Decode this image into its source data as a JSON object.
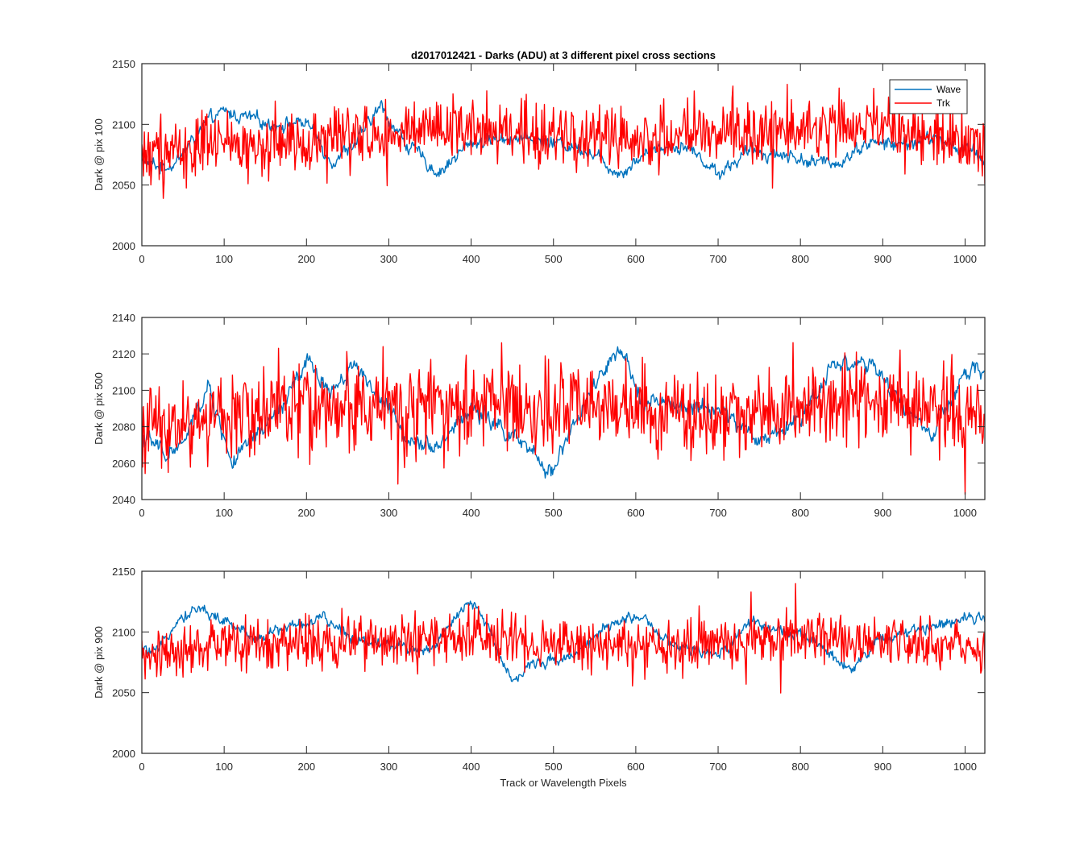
{
  "figure": {
    "title": "d2017012421 - Darks (ADU) at 3 different pixel cross sections",
    "xlabel": "Track or Wavelength Pixels"
  },
  "chart_data": [
    {
      "type": "line",
      "title": "d2017012421 - Darks (ADU) at 3 different pixel cross sections",
      "xlabel": "",
      "ylabel": "Dark @ pix 100",
      "xlim": [
        0,
        1024
      ],
      "ylim": [
        2000,
        2150
      ],
      "xticks": [
        0,
        100,
        200,
        300,
        400,
        500,
        600,
        700,
        800,
        900,
        1000
      ],
      "yticks": [
        2000,
        2050,
        2100,
        2150
      ],
      "legend": {
        "position": "top-right",
        "entries": [
          "Wave",
          "Trk"
        ]
      },
      "series": [
        {
          "name": "Wave",
          "color": "#0072BD",
          "kind": "smooth-noise",
          "x": [
            0,
            20,
            40,
            60,
            80,
            100,
            130,
            160,
            200,
            230,
            260,
            290,
            320,
            360,
            400,
            450,
            500,
            540,
            580,
            620,
            660,
            700,
            740,
            780,
            820,
            850,
            880,
            920,
            960,
            1000,
            1024
          ],
          "values": [
            2070,
            2065,
            2068,
            2085,
            2102,
            2110,
            2105,
            2100,
            2102,
            2070,
            2085,
            2115,
            2085,
            2060,
            2085,
            2090,
            2085,
            2080,
            2060,
            2080,
            2083,
            2060,
            2078,
            2075,
            2068,
            2070,
            2085,
            2083,
            2088,
            2080,
            2070
          ],
          "amplitude": 7
        },
        {
          "name": "Trk",
          "color": "#FF0000",
          "kind": "noise",
          "x": [
            0,
            100,
            200,
            300,
            400,
            500,
            600,
            700,
            800,
            900,
            1024
          ],
          "values": [
            2078,
            2082,
            2088,
            2092,
            2095,
            2090,
            2088,
            2092,
            2098,
            2095,
            2085
          ],
          "amplitude": 22
        }
      ]
    },
    {
      "type": "line",
      "xlabel": "",
      "ylabel": "Dark @ pix 500",
      "xlim": [
        0,
        1024
      ],
      "ylim": [
        2040,
        2140
      ],
      "xticks": [
        0,
        100,
        200,
        300,
        400,
        500,
        600,
        700,
        800,
        900,
        1000
      ],
      "yticks": [
        2040,
        2060,
        2080,
        2100,
        2120,
        2140
      ],
      "series": [
        {
          "name": "Wave",
          "color": "#0072BD",
          "kind": "smooth-noise",
          "x": [
            0,
            30,
            50,
            80,
            110,
            140,
            170,
            200,
            230,
            260,
            290,
            320,
            360,
            400,
            450,
            495,
            530,
            560,
            580,
            610,
            650,
            700,
            750,
            800,
            840,
            880,
            920,
            960,
            1000,
            1024
          ],
          "values": [
            2075,
            2065,
            2070,
            2102,
            2060,
            2075,
            2090,
            2115,
            2100,
            2115,
            2095,
            2075,
            2070,
            2090,
            2075,
            2055,
            2085,
            2110,
            2120,
            2095,
            2090,
            2090,
            2072,
            2085,
            2115,
            2115,
            2095,
            2075,
            2108,
            2112
          ],
          "amplitude": 6
        },
        {
          "name": "Trk",
          "color": "#FF0000",
          "kind": "noise",
          "x": [
            0,
            100,
            200,
            300,
            400,
            500,
            600,
            700,
            800,
            900,
            1024
          ],
          "values": [
            2080,
            2085,
            2092,
            2090,
            2092,
            2090,
            2088,
            2085,
            2092,
            2095,
            2085
          ],
          "amplitude": 20
        }
      ]
    },
    {
      "type": "line",
      "xlabel": "Track or Wavelength Pixels",
      "ylabel": "Dark @ pix 900",
      "xlim": [
        0,
        1024
      ],
      "ylim": [
        2000,
        2150
      ],
      "xticks": [
        0,
        100,
        200,
        300,
        400,
        500,
        600,
        700,
        800,
        900,
        1000
      ],
      "yticks": [
        2000,
        2050,
        2100,
        2150
      ],
      "series": [
        {
          "name": "Wave",
          "color": "#0072BD",
          "kind": "smooth-noise",
          "x": [
            0,
            20,
            40,
            70,
            100,
            140,
            180,
            220,
            260,
            300,
            350,
            400,
            420,
            450,
            480,
            520,
            560,
            600,
            630,
            660,
            700,
            740,
            780,
            820,
            860,
            900,
            940,
            980,
            1024
          ],
          "values": [
            2085,
            2082,
            2110,
            2120,
            2108,
            2095,
            2105,
            2110,
            2095,
            2090,
            2085,
            2125,
            2105,
            2060,
            2075,
            2080,
            2100,
            2115,
            2095,
            2085,
            2080,
            2110,
            2100,
            2090,
            2070,
            2095,
            2100,
            2110,
            2115
          ],
          "amplitude": 6
        },
        {
          "name": "Trk",
          "color": "#FF0000",
          "kind": "noise",
          "x": [
            0,
            100,
            200,
            300,
            400,
            500,
            600,
            700,
            800,
            900,
            1024
          ],
          "values": [
            2078,
            2090,
            2092,
            2092,
            2095,
            2090,
            2088,
            2090,
            2095,
            2096,
            2085
          ],
          "amplitude": 18
        }
      ]
    }
  ]
}
